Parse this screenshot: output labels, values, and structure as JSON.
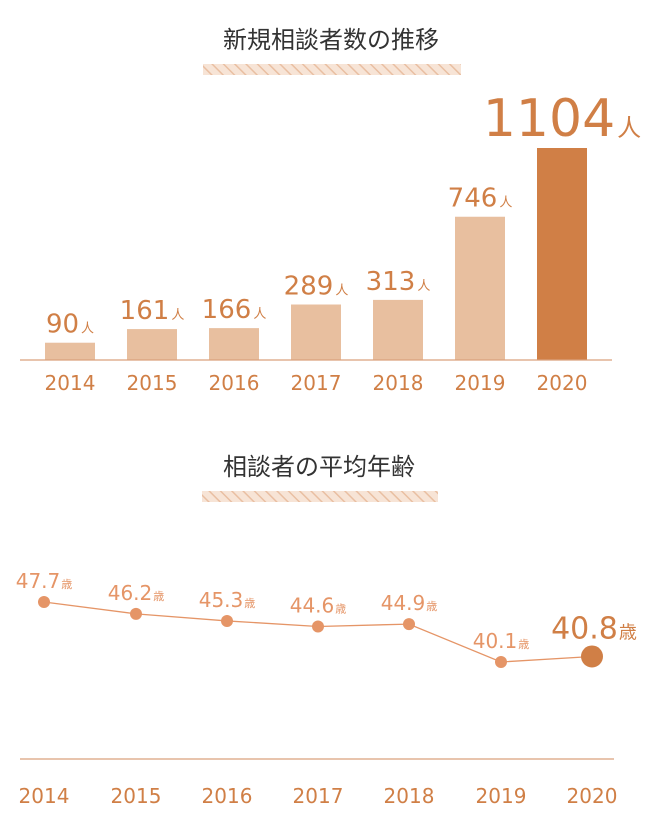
{
  "chart_data": [
    {
      "type": "bar",
      "title": "新規相談者数の推移",
      "categories": [
        "2014",
        "2015",
        "2016",
        "2017",
        "2018",
        "2019",
        "2020"
      ],
      "values": [
        90,
        161,
        166,
        289,
        313,
        746,
        1104
      ],
      "unit": "人",
      "highlight_index": 6,
      "ylim": [
        0,
        1104
      ],
      "grid": false,
      "colors": {
        "bar": "#e8bf9f",
        "highlight": "#d07f46",
        "text": "#d07f46",
        "baseline": "#d9a07c"
      }
    },
    {
      "type": "line",
      "title": "相談者の平均年齢",
      "categories": [
        "2014",
        "2015",
        "2016",
        "2017",
        "2018",
        "2019",
        "2020"
      ],
      "values": [
        47.7,
        46.2,
        45.3,
        44.6,
        44.9,
        40.1,
        40.8
      ],
      "unit": "歳",
      "highlight_index": 6,
      "grid": false,
      "colors": {
        "line": "#e59567",
        "point": "#e59567",
        "highlight": "#d07f46",
        "text": "#e59567"
      }
    }
  ]
}
